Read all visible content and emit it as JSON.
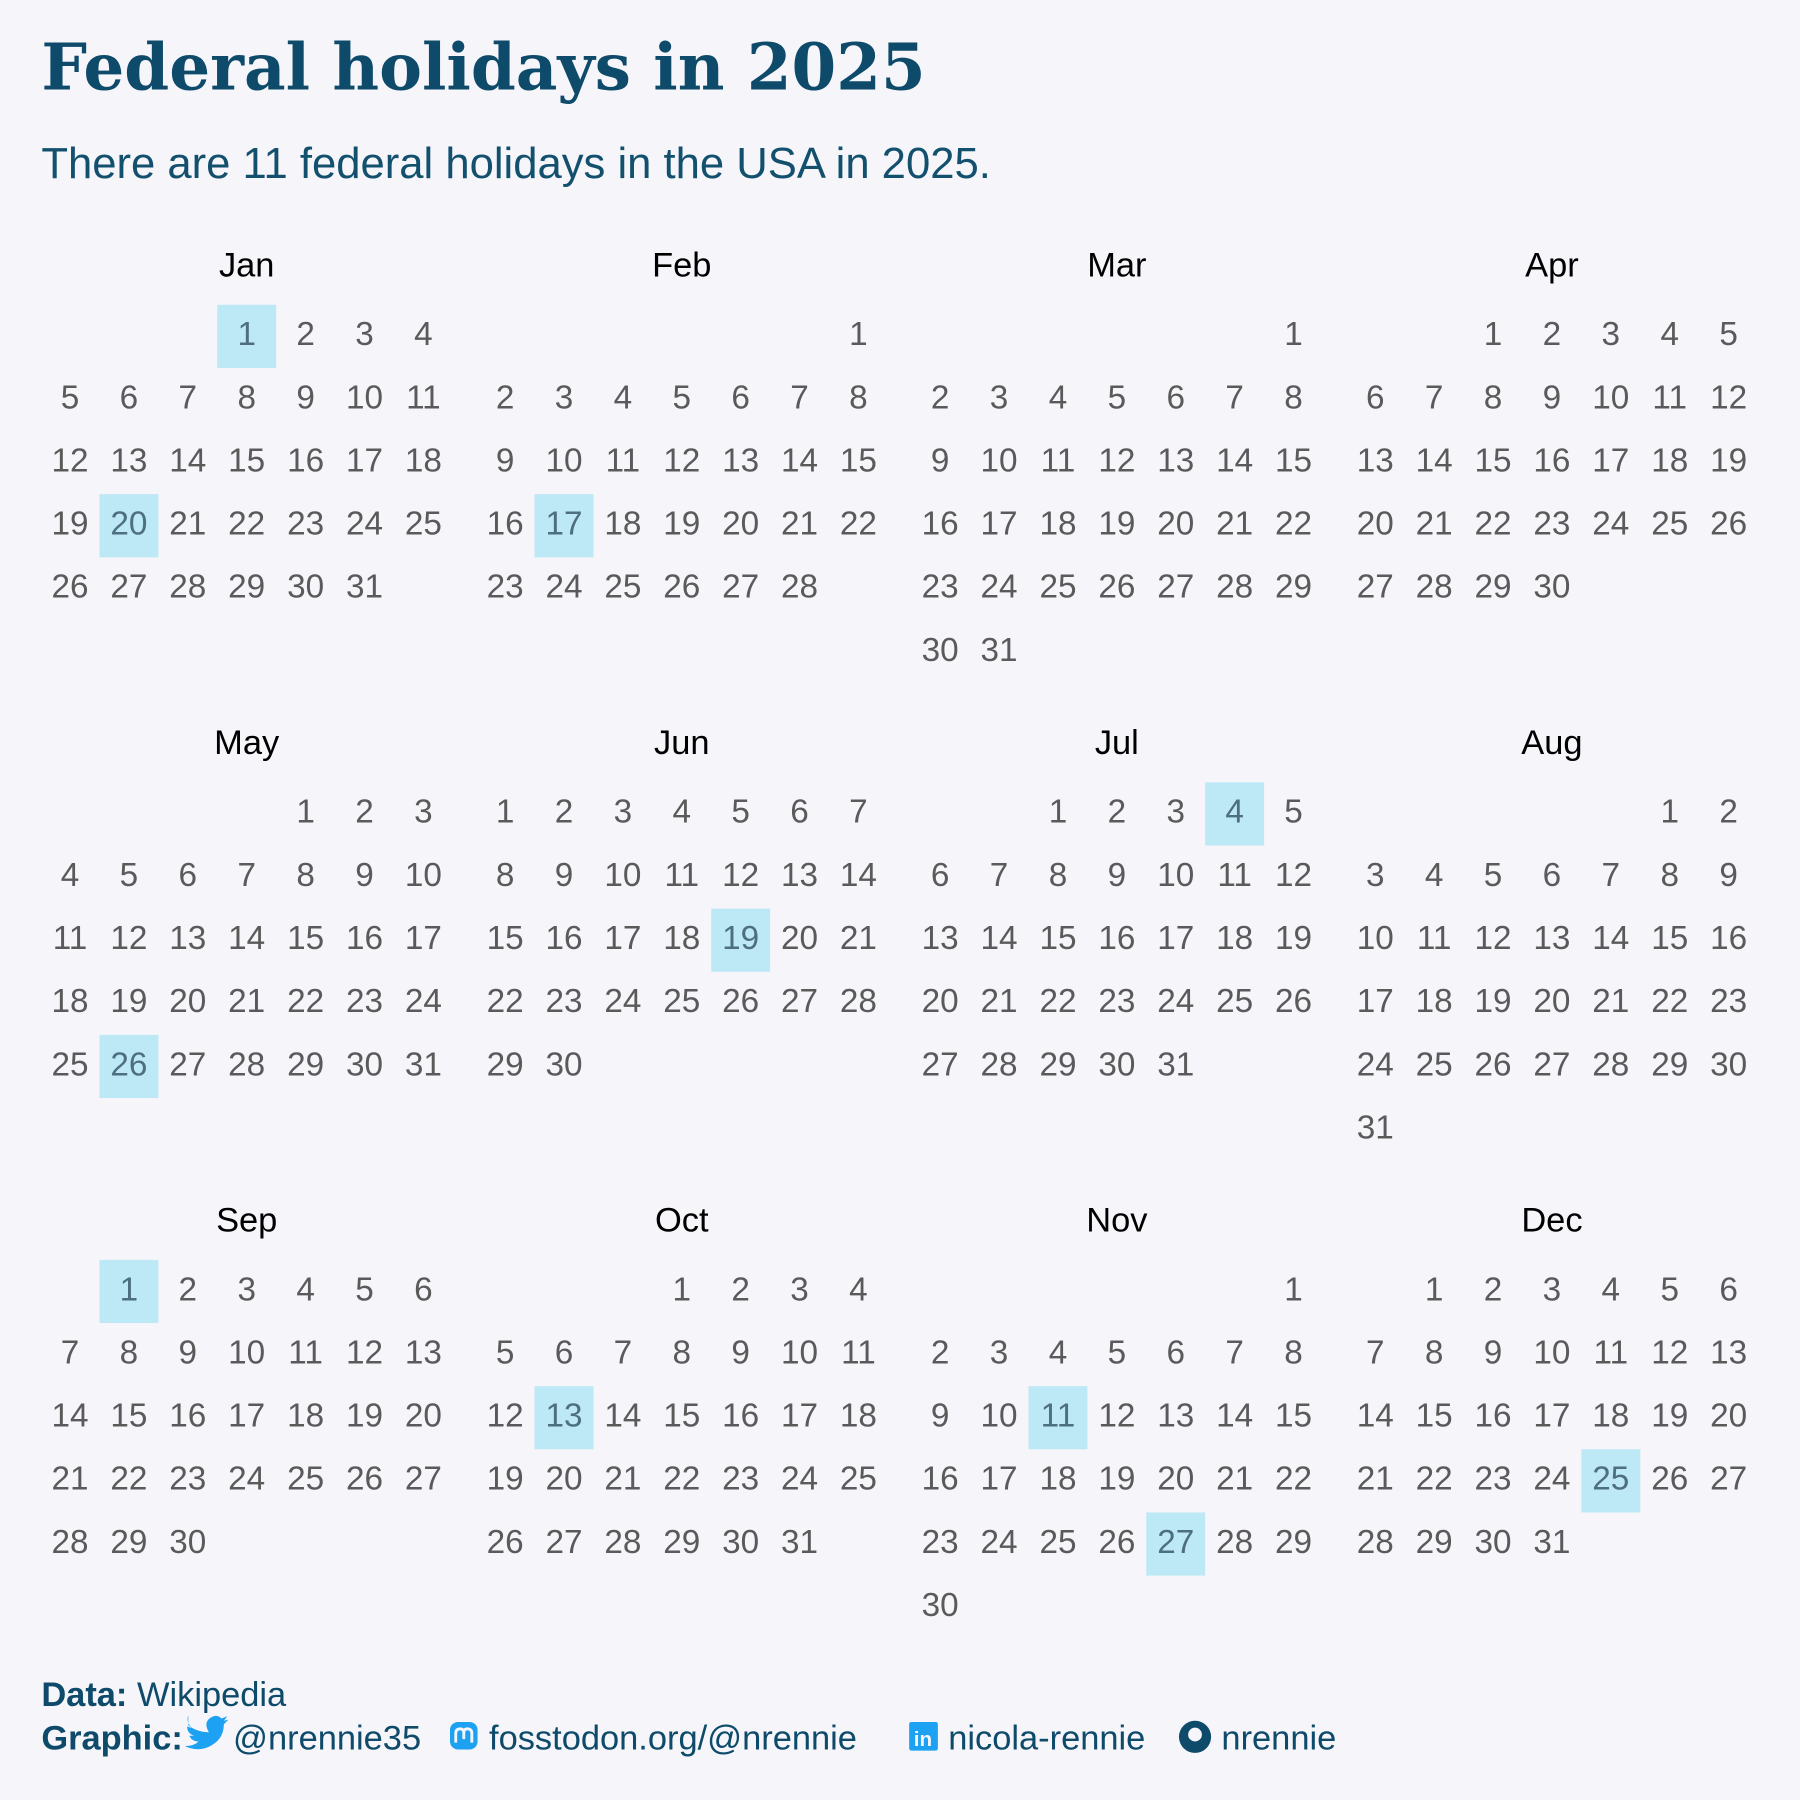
{
  "title": "Federal holidays in 2025",
  "subtitle": "There are 11 federal holidays in the USA in 2025.",
  "months": [
    {
      "name": "Jan",
      "holidays": [
        1,
        20
      ],
      "weeks": [
        [
          null,
          null,
          null,
          1,
          2,
          3,
          4
        ],
        [
          5,
          6,
          7,
          8,
          9,
          10,
          11
        ],
        [
          12,
          13,
          14,
          15,
          16,
          17,
          18
        ],
        [
          19,
          20,
          21,
          22,
          23,
          24,
          25
        ],
        [
          26,
          27,
          28,
          29,
          30,
          31
        ]
      ]
    },
    {
      "name": "Feb",
      "holidays": [
        17
      ],
      "weeks": [
        [
          null,
          null,
          null,
          null,
          null,
          null,
          1
        ],
        [
          2,
          3,
          4,
          5,
          6,
          7,
          8
        ],
        [
          9,
          10,
          11,
          12,
          13,
          14,
          15
        ],
        [
          16,
          17,
          18,
          19,
          20,
          21,
          22
        ],
        [
          23,
          24,
          25,
          26,
          27,
          28
        ]
      ]
    },
    {
      "name": "Mar",
      "holidays": [],
      "weeks": [
        [
          null,
          null,
          null,
          null,
          null,
          null,
          1
        ],
        [
          2,
          3,
          4,
          5,
          6,
          7,
          8
        ],
        [
          9,
          10,
          11,
          12,
          13,
          14,
          15
        ],
        [
          16,
          17,
          18,
          19,
          20,
          21,
          22
        ],
        [
          23,
          24,
          25,
          26,
          27,
          28,
          29
        ],
        [
          30,
          31
        ]
      ]
    },
    {
      "name": "Apr",
      "holidays": [],
      "weeks": [
        [
          null,
          null,
          1,
          2,
          3,
          4,
          5
        ],
        [
          6,
          7,
          8,
          9,
          10,
          11,
          12
        ],
        [
          13,
          14,
          15,
          16,
          17,
          18,
          19
        ],
        [
          20,
          21,
          22,
          23,
          24,
          25,
          26
        ],
        [
          27,
          28,
          29,
          30
        ]
      ]
    },
    {
      "name": "May",
      "holidays": [
        26
      ],
      "weeks": [
        [
          null,
          null,
          null,
          null,
          1,
          2,
          3
        ],
        [
          4,
          5,
          6,
          7,
          8,
          9,
          10
        ],
        [
          11,
          12,
          13,
          14,
          15,
          16,
          17
        ],
        [
          18,
          19,
          20,
          21,
          22,
          23,
          24
        ],
        [
          25,
          26,
          27,
          28,
          29,
          30,
          31
        ]
      ]
    },
    {
      "name": "Jun",
      "holidays": [
        19
      ],
      "weeks": [
        [
          1,
          2,
          3,
          4,
          5,
          6,
          7
        ],
        [
          8,
          9,
          10,
          11,
          12,
          13,
          14
        ],
        [
          15,
          16,
          17,
          18,
          19,
          20,
          21
        ],
        [
          22,
          23,
          24,
          25,
          26,
          27,
          28
        ],
        [
          29,
          30
        ]
      ]
    },
    {
      "name": "Jul",
      "holidays": [
        4
      ],
      "weeks": [
        [
          null,
          null,
          1,
          2,
          3,
          4,
          5
        ],
        [
          6,
          7,
          8,
          9,
          10,
          11,
          12
        ],
        [
          13,
          14,
          15,
          16,
          17,
          18,
          19
        ],
        [
          20,
          21,
          22,
          23,
          24,
          25,
          26
        ],
        [
          27,
          28,
          29,
          30,
          31
        ]
      ]
    },
    {
      "name": "Aug",
      "holidays": [],
      "weeks": [
        [
          null,
          null,
          null,
          null,
          null,
          1,
          2
        ],
        [
          3,
          4,
          5,
          6,
          7,
          8,
          9
        ],
        [
          10,
          11,
          12,
          13,
          14,
          15,
          16
        ],
        [
          17,
          18,
          19,
          20,
          21,
          22,
          23
        ],
        [
          24,
          25,
          26,
          27,
          28,
          29,
          30
        ],
        [
          31
        ]
      ]
    },
    {
      "name": "Sep",
      "holidays": [
        1
      ],
      "weeks": [
        [
          null,
          1,
          2,
          3,
          4,
          5,
          6
        ],
        [
          7,
          8,
          9,
          10,
          11,
          12,
          13
        ],
        [
          14,
          15,
          16,
          17,
          18,
          19,
          20
        ],
        [
          21,
          22,
          23,
          24,
          25,
          26,
          27
        ],
        [
          28,
          29,
          30
        ]
      ]
    },
    {
      "name": "Oct",
      "holidays": [
        13
      ],
      "weeks": [
        [
          null,
          null,
          null,
          1,
          2,
          3,
          4
        ],
        [
          5,
          6,
          7,
          8,
          9,
          10,
          11
        ],
        [
          12,
          13,
          14,
          15,
          16,
          17,
          18
        ],
        [
          19,
          20,
          21,
          22,
          23,
          24,
          25
        ],
        [
          26,
          27,
          28,
          29,
          30,
          31
        ]
      ]
    },
    {
      "name": "Nov",
      "holidays": [
        11,
        27
      ],
      "weeks": [
        [
          null,
          null,
          null,
          null,
          null,
          null,
          1
        ],
        [
          2,
          3,
          4,
          5,
          6,
          7,
          8
        ],
        [
          9,
          10,
          11,
          12,
          13,
          14,
          15
        ],
        [
          16,
          17,
          18,
          19,
          20,
          21,
          22
        ],
        [
          23,
          24,
          25,
          26,
          27,
          28,
          29
        ],
        [
          30
        ]
      ]
    },
    {
      "name": "Dec",
      "holidays": [
        25
      ],
      "weeks": [
        [
          null,
          1,
          2,
          3,
          4,
          5,
          6
        ],
        [
          7,
          8,
          9,
          10,
          11,
          12,
          13
        ],
        [
          14,
          15,
          16,
          17,
          18,
          19,
          20
        ],
        [
          21,
          22,
          23,
          24,
          25,
          26,
          27
        ],
        [
          28,
          29,
          30,
          31
        ]
      ]
    }
  ],
  "caption": {
    "data_label": "Data:",
    "data_source": "Wikipedia",
    "graphic_label": "Graphic:",
    "twitter": "@nrennie35",
    "mastodon": "fosstodon.org/@nrennie",
    "linkedin": "nicola-rennie",
    "github": "nrennie"
  }
}
